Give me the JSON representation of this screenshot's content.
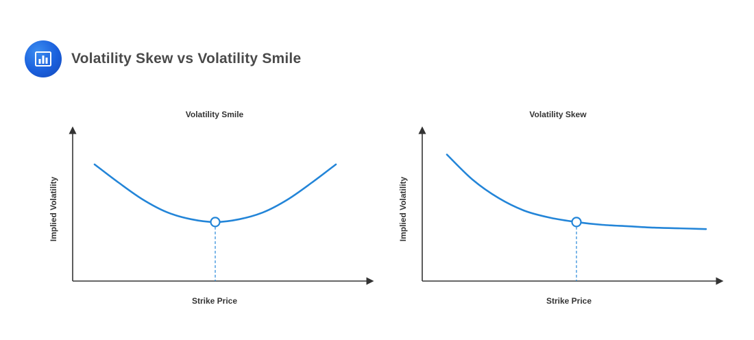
{
  "header": {
    "title": "Volatility Skew vs Volatility Smile",
    "icon": "bar-chart-icon",
    "accent": "#1f6ee0"
  },
  "chart_data": [
    {
      "type": "line",
      "title": "Volatility Smile",
      "xlabel": "Strike Price",
      "ylabel": "Implied Volatility",
      "x": [
        0.0,
        0.1,
        0.2,
        0.3,
        0.4,
        0.5,
        0.6,
        0.7,
        0.8,
        0.9,
        1.0
      ],
      "y": [
        0.83,
        0.7,
        0.58,
        0.49,
        0.44,
        0.42,
        0.44,
        0.49,
        0.58,
        0.7,
        0.83
      ],
      "xlim": [
        0,
        1
      ],
      "ylim": [
        0,
        1
      ],
      "marker": {
        "x": 0.5,
        "y": 0.42,
        "dashed_drop": true
      },
      "grid": false,
      "color": "#2385d8"
    },
    {
      "type": "line",
      "title": "Volatility Skew",
      "xlabel": "Strike Price",
      "ylabel": "Implied Volatility",
      "x": [
        0.0,
        0.1,
        0.2,
        0.3,
        0.4,
        0.5,
        0.6,
        0.7,
        0.8,
        0.9,
        1.0
      ],
      "y": [
        0.9,
        0.72,
        0.59,
        0.5,
        0.45,
        0.42,
        0.4,
        0.39,
        0.38,
        0.375,
        0.37
      ],
      "xlim": [
        0,
        1
      ],
      "ylim": [
        0,
        1
      ],
      "marker": {
        "x": 0.5,
        "y": 0.42,
        "dashed_drop": true
      },
      "grid": false,
      "color": "#2385d8"
    }
  ]
}
